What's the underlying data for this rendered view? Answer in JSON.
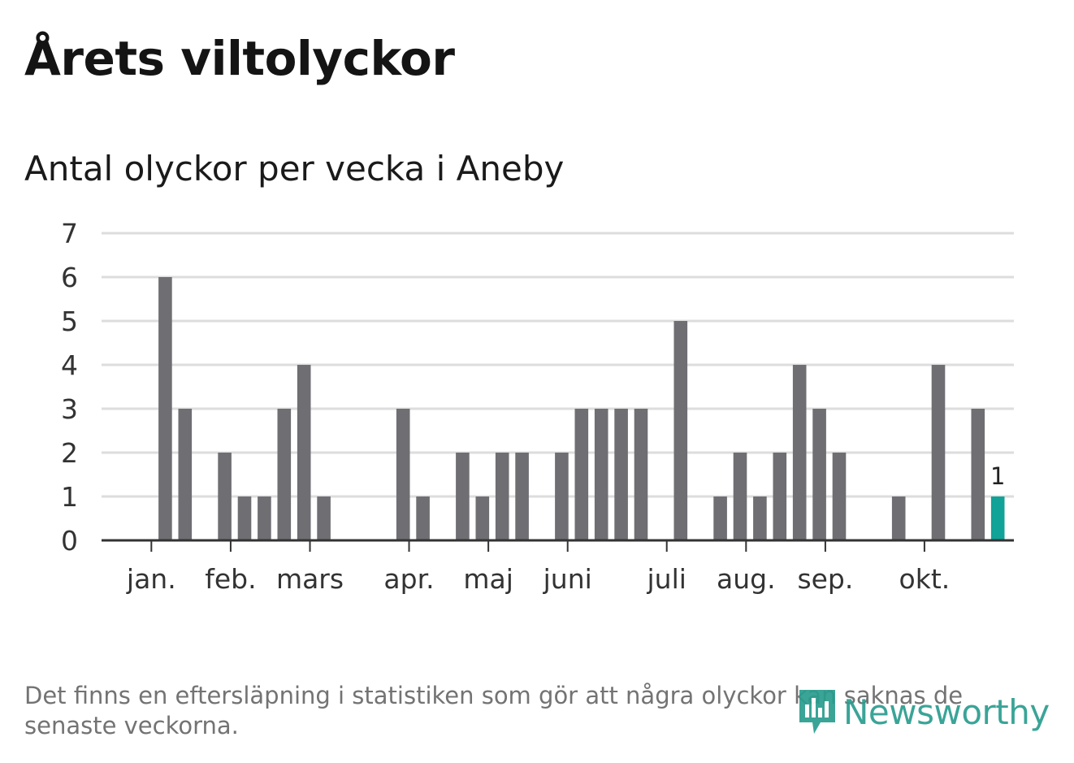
{
  "title": "Årets viltolyckor",
  "subtitle": "Antal olyckor per vecka i Aneby",
  "footnote": "Det finns en eftersläpning i statistiken som gör att några olyckor kan saknas de senaste veckorna.",
  "logo_text": "Newsworthy",
  "colors": {
    "bar": "#6e6e73",
    "highlight": "#11a298",
    "grid": "#dddddd",
    "axis": "#333333"
  },
  "chart_data": {
    "type": "bar",
    "x_unit": "week",
    "values": [
      null,
      6,
      3,
      null,
      2,
      1,
      1,
      3,
      4,
      1,
      null,
      null,
      null,
      3,
      1,
      null,
      2,
      1,
      2,
      2,
      null,
      2,
      3,
      3,
      3,
      3,
      null,
      5,
      null,
      1,
      2,
      1,
      2,
      4,
      3,
      2,
      null,
      null,
      1,
      null,
      4,
      null,
      3,
      1
    ],
    "highlight_index": 43,
    "highlight_label": "1",
    "month_labels": [
      {
        "label": "jan.",
        "week": 1
      },
      {
        "label": "feb.",
        "week": 5
      },
      {
        "label": "mars",
        "week": 9
      },
      {
        "label": "apr.",
        "week": 14
      },
      {
        "label": "maj",
        "week": 18
      },
      {
        "label": "juni",
        "week": 22
      },
      {
        "label": "juli",
        "week": 27
      },
      {
        "label": "aug.",
        "week": 31
      },
      {
        "label": "sep.",
        "week": 35
      },
      {
        "label": "okt.",
        "week": 40
      }
    ],
    "ylim": [
      0,
      7
    ],
    "yticks": [
      0,
      1,
      2,
      3,
      4,
      5,
      6,
      7
    ],
    "grid": true
  }
}
